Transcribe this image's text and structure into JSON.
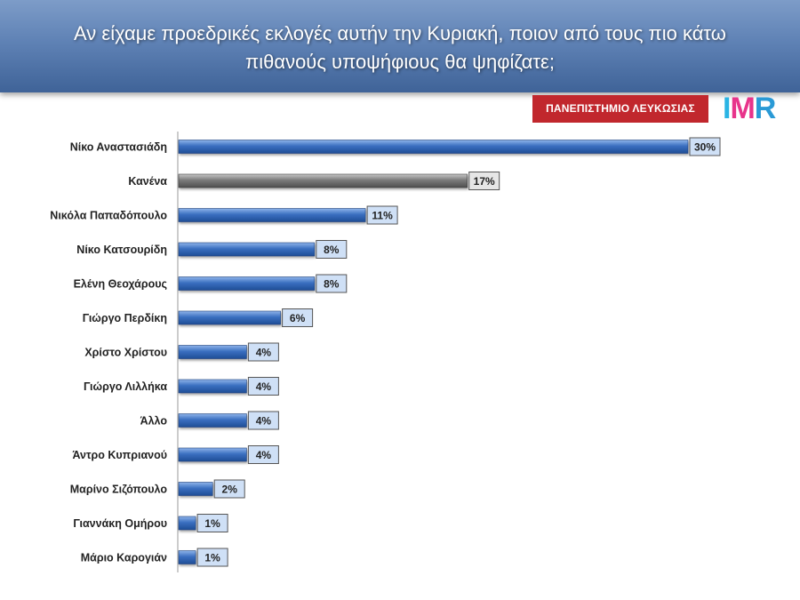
{
  "header": {
    "title_line1": "Αν είχαμε προεδρικές εκλογές αυτήν την Κυριακή, ποιον από τους πιο κάτω",
    "title_line2": "πιθανούς υποψήφιους θα ψηφίζατε;"
  },
  "logos": {
    "university": "ΠΑΝΕΠΙΣΤΗΜΙΟ ΛΕΥΚΩΣΙΑΣ",
    "imr": "IMR"
  },
  "colors": {
    "header": "#5f82b5",
    "bar_blue": "#3a6fc0",
    "bar_gray": "#7a7a7a",
    "label_box_blue": "#cfe0f6",
    "label_box_gray": "#e6e6e6",
    "university_red": "#c1272d"
  },
  "chart_data": {
    "type": "bar",
    "orientation": "horizontal",
    "title": "Αν είχαμε προεδρικές εκλογές αυτήν την Κυριακή, ποιον από τους πιο κάτω πιθανούς υποψήφιους θα ψηφίζατε;",
    "categories": [
      "Νίκο Αναστασιάδη",
      "Κανένα",
      "Νικόλα Παπαδόπουλο",
      "Νίκο Κατσουρίδη",
      "Ελένη Θεοχάρους",
      "Γιώργο Περδίκη",
      "Χρίστο Χρίστου",
      "Γιώργο Λιλλήκα",
      "Άλλο",
      "Άντρο Κυπριανού",
      "Μαρίνο Σιζόπουλο",
      "Γιαννάκη Ομήρου",
      "Μάριο Καρογιάν"
    ],
    "values": [
      30,
      17,
      11,
      8,
      8,
      6,
      4,
      4,
      4,
      4,
      2,
      1,
      1
    ],
    "value_labels": [
      "30%",
      "17%",
      "11%",
      "8%",
      "8%",
      "6%",
      "4%",
      "4%",
      "4%",
      "4%",
      "2%",
      "1%",
      "1%"
    ],
    "highlight_category": "Κανένα",
    "unit": "%",
    "grid": false,
    "legend": "none"
  }
}
